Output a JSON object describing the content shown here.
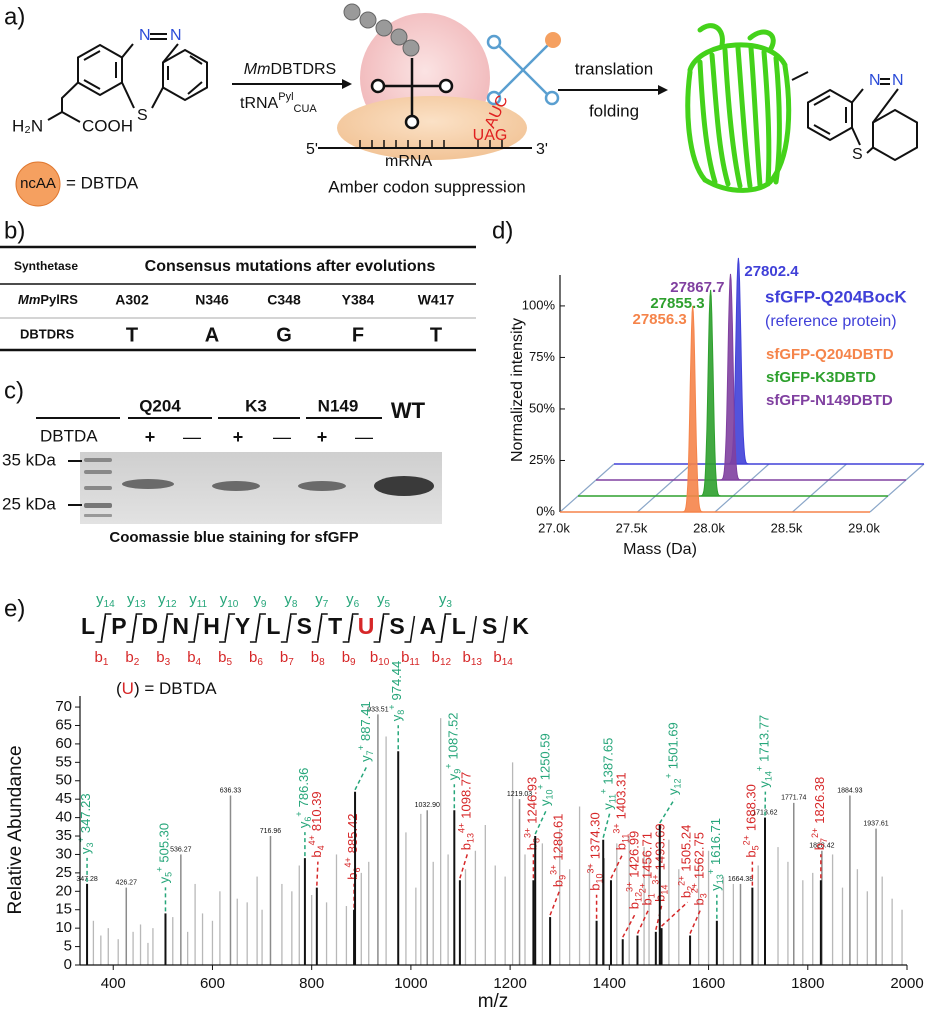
{
  "panel_a": {
    "label": "a)",
    "amine": "H₂N",
    "acid": "COOH",
    "atoms": [
      "N",
      "N",
      "S"
    ],
    "ncaa": "ncAA",
    "ncaa_eq": "= DBTDA",
    "enzyme_italic": "Mm",
    "enzyme": "DBTDRS",
    "trna": "tRNA",
    "trna_sup": "Pyl",
    "trna_sub": "CUA",
    "five": "5'",
    "three": "3'",
    "mrna": "mRNA",
    "codon": "UAG",
    "anticodon": "AUC",
    "caption": "Amber codon suppression",
    "step1": "translation",
    "step2": "folding",
    "product_atoms": [
      "N",
      "N",
      "S"
    ]
  },
  "panel_b": {
    "label": "b)",
    "header": [
      "Synthetase",
      "Consensus mutations after evolutions"
    ],
    "rows": [
      {
        "name_italic": "Mm",
        "name": "PylRS",
        "cells": [
          "A302",
          "N346",
          "C348",
          "Y384",
          "W417"
        ]
      },
      {
        "name": "DBTDRS",
        "cells": [
          "T",
          "A",
          "G",
          "F",
          "T"
        ]
      }
    ]
  },
  "panel_c": {
    "label": "c)",
    "groups": [
      "Q204",
      "K3",
      "N149",
      "WT"
    ],
    "reagent": "DBTDA",
    "plus": "+",
    "minus": "—",
    "markers": [
      "35 kDa",
      "25 kDa"
    ],
    "caption": "Coomassie blue staining for sfGFP"
  },
  "chart_data": [
    {
      "panel": "d)",
      "type": "waterfall",
      "xlabel": "Mass (Da)",
      "ylabel": "Normalized intensity",
      "xlim": [
        27000,
        29000
      ],
      "xticks": [
        {
          "value": 27000,
          "label": "27.0k"
        },
        {
          "value": 27500,
          "label": "27.5k"
        },
        {
          "value": 28000,
          "label": "28.0k"
        },
        {
          "value": 28500,
          "label": "28.5k"
        },
        {
          "value": 29000,
          "label": "29.0k"
        }
      ],
      "ylim": [
        0,
        115
      ],
      "yticks": [
        {
          "value": 0,
          "label": "0%"
        },
        {
          "value": 25,
          "label": "25%"
        },
        {
          "value": 50,
          "label": "50%"
        },
        {
          "value": 75,
          "label": "75%"
        },
        {
          "value": 100,
          "label": "100%"
        }
      ],
      "series": [
        {
          "name": "sfGFP-Q204DBTD",
          "color": "#f5844a",
          "peak": 27856.3,
          "intensity": 100
        },
        {
          "name": "sfGFP-K3DBTD",
          "color": "#2ea02e",
          "peak": 27855.3,
          "intensity": 100
        },
        {
          "name": "sfGFP-N149DBTD",
          "color": "#8040a0",
          "peak": 27867.7,
          "intensity": 100
        },
        {
          "name": "sfGFP-Q204BocK",
          "note": "(reference protein)",
          "color": "#4040d8",
          "peak": 27802.4,
          "intensity": 100
        }
      ]
    },
    {
      "panel": "e)",
      "type": "spectrum",
      "xlabel": "m/z",
      "ylabel": "Relative Abundance",
      "xlim": [
        333,
        2000
      ],
      "xticks": [
        400,
        600,
        800,
        1000,
        1200,
        1400,
        1600,
        1800,
        2000
      ],
      "ylim": [
        0,
        73
      ],
      "yticks": [
        0,
        5,
        10,
        15,
        20,
        25,
        30,
        35,
        40,
        45,
        50,
        55,
        60,
        65,
        70
      ],
      "sequence": [
        "L",
        "P",
        "D",
        "N",
        "H",
        "Y",
        "L",
        "S",
        "T",
        "U",
        "S",
        "A",
        "L",
        "S",
        "K"
      ],
      "y_ion": "y",
      "y_fragments": [
        14,
        13,
        12,
        11,
        10,
        9,
        8,
        7,
        6,
        5,
        3
      ],
      "b_ion": "b",
      "b_fragments": [
        1,
        2,
        3,
        4,
        5,
        6,
        7,
        8,
        9,
        10,
        11,
        12,
        13,
        14
      ],
      "legend": [
        "(",
        "U",
        ") = DBTDA"
      ],
      "y_color": "#26a67a",
      "b_color": "#d62728",
      "peak_color": "#b8b8b8",
      "fragment_color": "#111111",
      "fragment_peaks": [
        {
          "ion": "y",
          "index": 3,
          "charge": "+",
          "mz": 347.23,
          "abundance": 22
        },
        {
          "ion": "y",
          "index": 5,
          "charge": "+",
          "mz": 505.3,
          "label": "505.30",
          "abundance": 14
        },
        {
          "ion": "y",
          "index": 6,
          "charge": "+",
          "mz": 786.36,
          "abundance": 29
        },
        {
          "ion": "b",
          "index": 4,
          "charge": "4+",
          "mz": 810.39,
          "abundance": 21
        },
        {
          "ion": "b",
          "index": 6,
          "charge": "4+",
          "mz": 885.42,
          "abundance": 15
        },
        {
          "ion": "y",
          "index": 7,
          "charge": "+",
          "mz": 887.41,
          "abundance": 47
        },
        {
          "ion": "y",
          "index": 8,
          "charge": "+",
          "mz": 974.44,
          "abundance": 58
        },
        {
          "ion": "y",
          "index": 9,
          "charge": "+",
          "mz": 1087.52,
          "abundance": 42
        },
        {
          "ion": "b",
          "index": 13,
          "charge": "4+",
          "mz": 1098.77,
          "abundance": 23
        },
        {
          "ion": "b",
          "index": 8,
          "charge": "3+",
          "mz": 1246.93,
          "abundance": 23
        },
        {
          "ion": "y",
          "index": 10,
          "charge": "+",
          "mz": 1250.59,
          "abundance": 35
        },
        {
          "ion": "b",
          "index": 9,
          "charge": "3+",
          "mz": 1280.61,
          "abundance": 13
        },
        {
          "ion": "b",
          "index": 10,
          "charge": "3+",
          "mz": 1374.3,
          "label": "1374.30",
          "abundance": 12
        },
        {
          "ion": "y",
          "index": 11,
          "charge": "+",
          "mz": 1387.65,
          "abundance": 34
        },
        {
          "ion": "b",
          "index": 11,
          "charge": "3+",
          "mz": 1403.31,
          "abundance": 23
        },
        {
          "ion": "b",
          "index": 12,
          "charge": "3+",
          "mz": 1426.99,
          "abundance": 7
        },
        {
          "ion": "b",
          "index": 1,
          "charge": "2+",
          "mz": 1456.71,
          "abundance": 8
        },
        {
          "ion": "b",
          "index": 14,
          "charge": "3+",
          "mz": 1493.69,
          "abundance": 9
        },
        {
          "ion": "y",
          "index": 12,
          "charge": "+",
          "mz": 1501.69,
          "abundance": 38
        },
        {
          "ion": "b",
          "index": 2,
          "charge": "2+",
          "mz": 1505.24,
          "abundance": 10
        },
        {
          "ion": "b",
          "index": 3,
          "charge": "2+",
          "mz": 1562.75,
          "abundance": 8
        },
        {
          "ion": "y",
          "index": 13,
          "charge": "+",
          "mz": 1616.71,
          "abundance": 12
        },
        {
          "ion": "b",
          "index": 5,
          "charge": "2+",
          "mz": 1688.3,
          "label": "1688.30",
          "abundance": 21
        },
        {
          "ion": "y",
          "index": 14,
          "charge": "+",
          "mz": 1713.77,
          "abundance": 40
        },
        {
          "ion": "b",
          "index": 7,
          "charge": "2+",
          "mz": 1826.38,
          "abundance": 23
        }
      ],
      "labeled_peaks": {
        "mz": [
          347.28,
          426.27,
          536.27,
          636.33,
          716.96,
          933.51,
          1032.9,
          1219.03,
          1664.38,
          1713.62,
          1771.74,
          1828.42,
          1884.93,
          1937.61
        ],
        "value_labels": [
          "347.28",
          "426.27",
          "536.27",
          "636.33",
          "716.96",
          "933.51",
          "1032.90",
          "1219.03",
          "1664.38",
          "1713.62",
          "1771.74",
          "1828.42",
          "1884.93",
          "1937.61"
        ],
        "abundance": [
          22,
          21,
          30,
          46,
          35,
          68,
          42,
          45,
          22,
          40,
          44,
          31,
          46,
          37
        ]
      },
      "peaks": {
        "mz": [
          360,
          375,
          390,
          410,
          440,
          455,
          470,
          480,
          520,
          550,
          565,
          580,
          600,
          615,
          650,
          670,
          690,
          700,
          740,
          760,
          775,
          800,
          830,
          850,
          870,
          900,
          915,
          950,
          990,
          1010,
          1020,
          1045,
          1060,
          1075,
          1110,
          1130,
          1150,
          1170,
          1190,
          1205,
          1230,
          1265,
          1300,
          1320,
          1340,
          1360,
          1390,
          1415,
          1440,
          1470,
          1480,
          1520,
          1540,
          1580,
          1600,
          1630,
          1650,
          1700,
          1740,
          1760,
          1790,
          1810,
          1850,
          1870,
          1900,
          1920,
          1950,
          1970,
          1990
        ],
        "abundance": [
          12,
          8,
          10,
          7,
          9,
          11,
          6,
          10,
          13,
          9,
          22,
          14,
          12,
          20,
          18,
          17,
          24,
          15,
          22,
          20,
          27,
          19,
          17,
          30,
          16,
          25,
          28,
          62,
          36,
          21,
          41,
          28,
          67,
          30,
          26,
          31,
          38,
          27,
          24,
          55,
          30,
          33,
          37,
          26,
          43,
          27,
          29,
          33,
          35,
          32,
          30,
          34,
          26,
          28,
          31,
          24,
          22,
          27,
          32,
          28,
          23,
          25,
          30,
          21,
          26,
          20,
          24,
          18,
          15
        ]
      }
    }
  ]
}
